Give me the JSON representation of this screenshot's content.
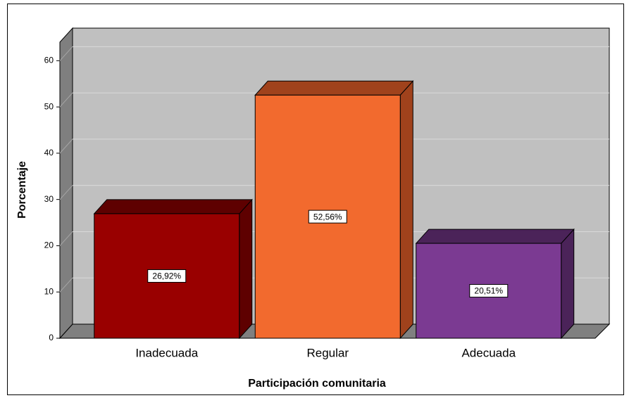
{
  "chart_data": {
    "type": "bar3d",
    "categories": [
      "Inadecuada",
      "Regular",
      "Adecuada"
    ],
    "values": [
      26.92,
      52.56,
      20.51
    ],
    "value_labels": [
      "26,92%",
      "52,56%",
      "20,51%"
    ],
    "colors": [
      "#990000",
      "#f26a2e",
      "#7b3a92"
    ],
    "shade_colors": [
      "#5e0000",
      "#a0421c",
      "#4b2359"
    ],
    "x_label": "Participación comunitaria",
    "y_label": "Porcentaje",
    "ylim": [
      0,
      64
    ],
    "yticks": [
      0,
      10,
      20,
      30,
      40,
      50,
      60
    ],
    "grid": true
  }
}
